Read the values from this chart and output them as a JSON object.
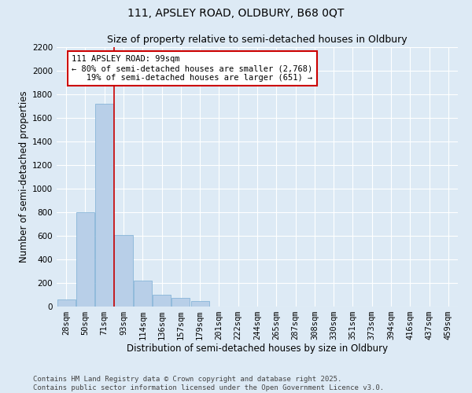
{
  "title": "111, APSLEY ROAD, OLDBURY, B68 0QT",
  "subtitle": "Size of property relative to semi-detached houses in Oldbury",
  "xlabel": "Distribution of semi-detached houses by size in Oldbury",
  "ylabel": "Number of semi-detached properties",
  "categories": [
    "28sqm",
    "50sqm",
    "71sqm",
    "93sqm",
    "114sqm",
    "136sqm",
    "157sqm",
    "179sqm",
    "201sqm",
    "222sqm",
    "244sqm",
    "265sqm",
    "287sqm",
    "308sqm",
    "330sqm",
    "351sqm",
    "373sqm",
    "394sqm",
    "416sqm",
    "437sqm",
    "459sqm"
  ],
  "values": [
    60,
    800,
    1720,
    610,
    220,
    100,
    75,
    50,
    0,
    0,
    0,
    0,
    0,
    0,
    0,
    0,
    0,
    0,
    0,
    0,
    0
  ],
  "bar_color": "#b8cfe8",
  "bar_edge_color": "#7aadd4",
  "vline_pos": 2.5,
  "vline_color": "#cc0000",
  "annotation_text": "111 APSLEY ROAD: 99sqm\n← 80% of semi-detached houses are smaller (2,768)\n   19% of semi-detached houses are larger (651) →",
  "annotation_box_color": "#ffffff",
  "annotation_box_edge": "#cc0000",
  "ylim": [
    0,
    2200
  ],
  "yticks": [
    0,
    200,
    400,
    600,
    800,
    1000,
    1200,
    1400,
    1600,
    1800,
    2000,
    2200
  ],
  "bg_color": "#ddeaf5",
  "plot_bg_color": "#ddeaf5",
  "footer": "Contains HM Land Registry data © Crown copyright and database right 2025.\nContains public sector information licensed under the Open Government Licence v3.0.",
  "title_fontsize": 10,
  "subtitle_fontsize": 9,
  "axis_label_fontsize": 8.5,
  "tick_fontsize": 7.5,
  "footer_fontsize": 6.5,
  "annotation_fontsize": 7.5
}
